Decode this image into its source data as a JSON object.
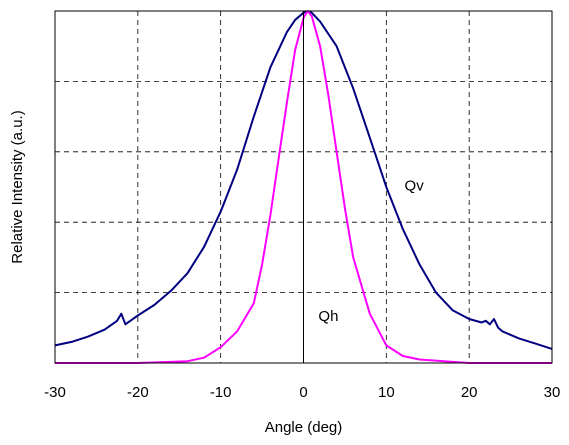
{
  "chart_data": {
    "type": "line",
    "title": "",
    "xlabel": "Angle (deg)",
    "ylabel": "Relative Intensity (a.u.)",
    "xlim": [
      -30,
      30
    ],
    "ylim": [
      0,
      1
    ],
    "xticks": [
      -30,
      -20,
      -10,
      0,
      10,
      20,
      30
    ],
    "xtick_labels": [
      "-30",
      "-20",
      "-10",
      "0",
      "10",
      "20",
      "30"
    ],
    "ygrid": [
      0.2,
      0.4,
      0.6,
      0.8
    ],
    "grid": "dashed",
    "series": [
      {
        "name": "Qv",
        "color": "#000080",
        "x": [
          -30,
          -28,
          -26,
          -24,
          -22.5,
          -22,
          -21.5,
          -20,
          -18,
          -16,
          -14,
          -12,
          -10,
          -8,
          -6,
          -4,
          -2,
          -1,
          0,
          0.5,
          1,
          2,
          4,
          6,
          8,
          10,
          12,
          14,
          16,
          18,
          20,
          21.5,
          22,
          22.5,
          23,
          23.5,
          24,
          26,
          28,
          30
        ],
        "y": [
          0.05,
          0.06,
          0.075,
          0.095,
          0.12,
          0.14,
          0.11,
          0.135,
          0.165,
          0.205,
          0.255,
          0.33,
          0.43,
          0.55,
          0.7,
          0.84,
          0.94,
          0.975,
          0.995,
          1.0,
          0.995,
          0.97,
          0.9,
          0.78,
          0.64,
          0.5,
          0.38,
          0.28,
          0.2,
          0.15,
          0.125,
          0.115,
          0.12,
          0.11,
          0.125,
          0.1,
          0.09,
          0.07,
          0.055,
          0.04
        ]
      },
      {
        "name": "Qh",
        "color": "#ff00ff",
        "x": [
          -30,
          -20,
          -14,
          -12,
          -10,
          -8,
          -6,
          -5,
          -4,
          -3,
          -2,
          -1,
          0,
          0.5,
          1,
          2,
          3,
          4,
          5,
          6,
          8,
          10,
          12,
          14,
          20,
          30
        ],
        "y": [
          0,
          0,
          0.005,
          0.015,
          0.045,
          0.09,
          0.17,
          0.28,
          0.42,
          0.58,
          0.74,
          0.89,
          0.98,
          1.0,
          0.985,
          0.9,
          0.76,
          0.6,
          0.44,
          0.3,
          0.14,
          0.05,
          0.02,
          0.01,
          0,
          0
        ]
      }
    ],
    "annotations": [
      {
        "text": "Qv",
        "x": 12.2,
        "y": 0.49
      },
      {
        "text": "Qh",
        "x": 1.8,
        "y": 0.12
      }
    ]
  }
}
